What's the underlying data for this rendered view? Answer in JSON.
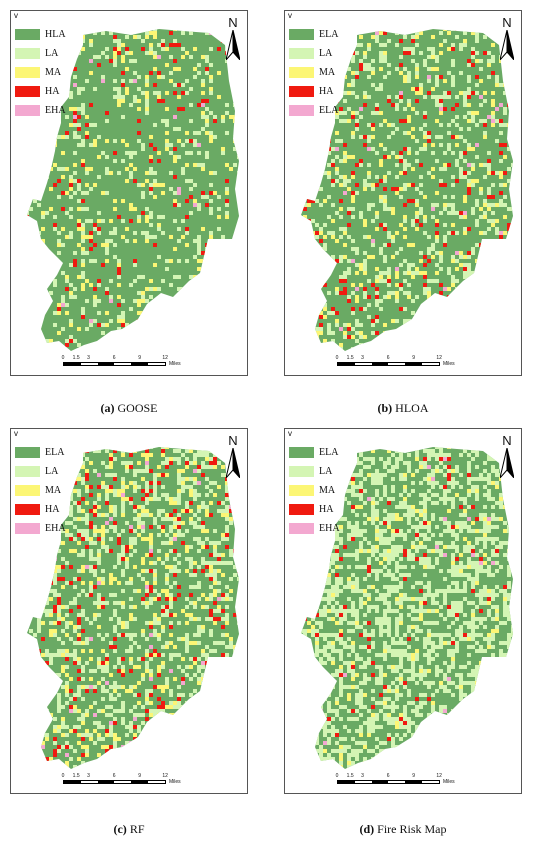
{
  "panels": [
    {
      "letter": "(a)",
      "caption": "GOOSE",
      "legend": [
        {
          "label": "HLA",
          "color": "#6aaa64"
        },
        {
          "label": "LA",
          "color": "#d4f5b4"
        },
        {
          "label": "MA",
          "color": "#fcf675"
        },
        {
          "label": "HA",
          "color": "#f01a10"
        },
        {
          "label": "EHA",
          "color": "#f3a8d0"
        }
      ],
      "class_fractions": {
        "base": 0.78,
        "LA": 0.12,
        "MA": 0.06,
        "HA": 0.035,
        "EHA": 0.005
      }
    },
    {
      "letter": "(b)",
      "caption": "HLOA",
      "legend": [
        {
          "label": "ELA",
          "color": "#6aaa64"
        },
        {
          "label": "LA",
          "color": "#d4f5b4"
        },
        {
          "label": "MA",
          "color": "#fcf675"
        },
        {
          "label": "HA",
          "color": "#f01a10"
        },
        {
          "label": "ELA",
          "color": "#f3a8d0"
        }
      ],
      "class_fractions": {
        "base": 0.7,
        "LA": 0.17,
        "MA": 0.07,
        "HA": 0.05,
        "EHA": 0.01
      }
    },
    {
      "letter": "(c)",
      "caption": "RF",
      "legend": [
        {
          "label": "ELA",
          "color": "#6aaa64"
        },
        {
          "label": "LA",
          "color": "#d4f5b4"
        },
        {
          "label": "MA",
          "color": "#fcf675"
        },
        {
          "label": "HA",
          "color": "#f01a10"
        },
        {
          "label": "EHA",
          "color": "#f3a8d0"
        }
      ],
      "class_fractions": {
        "base": 0.6,
        "LA": 0.22,
        "MA": 0.11,
        "HA": 0.06,
        "EHA": 0.01
      }
    },
    {
      "letter": "(d)",
      "caption": "Fire Risk Map",
      "legend": [
        {
          "label": "ELA",
          "color": "#6aaa64"
        },
        {
          "label": "LA",
          "color": "#d4f5b4"
        },
        {
          "label": "MA",
          "color": "#fcf675"
        },
        {
          "label": "HA",
          "color": "#f01a10"
        },
        {
          "label": "EHA",
          "color": "#f3a8d0"
        }
      ],
      "class_fractions": {
        "base": 0.52,
        "LA": 0.4,
        "MA": 0.05,
        "HA": 0.025,
        "EHA": 0.005
      }
    }
  ],
  "north_label": "N",
  "corner_mark": "v",
  "scale": {
    "ticks": [
      "0",
      "1.5",
      "3",
      "6",
      "9",
      "12"
    ],
    "unit": "Miles"
  }
}
